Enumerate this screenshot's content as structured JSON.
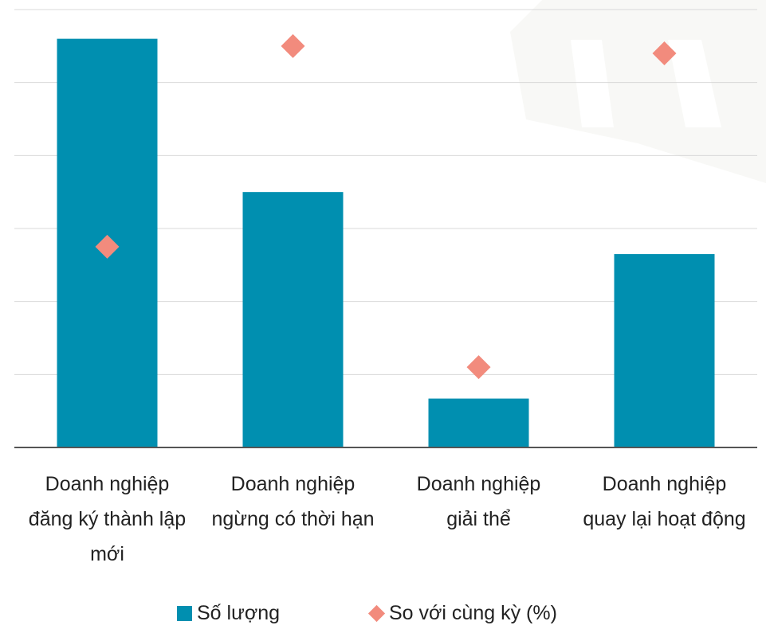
{
  "chart_data": {
    "type": "bar",
    "categories": [
      [
        "Doanh nghiệp",
        "đăng ký thành lập",
        "mới"
      ],
      [
        "Doanh nghiệp",
        "ngừng có thời hạn"
      ],
      [
        "Doanh nghiệp",
        "giải thể"
      ],
      [
        "Doanh nghiệp",
        "quay lại hoạt động"
      ]
    ],
    "series": [
      {
        "name": "Số lượng",
        "kind": "bar",
        "color": "#008fb0",
        "values": [
          5.6,
          3.5,
          0.67,
          2.65
        ]
      },
      {
        "name": "So với cùng kỳ (%)",
        "kind": "marker-diamond",
        "color": "#f28b7d",
        "values": [
          2.75,
          5.5,
          1.1,
          5.4
        ]
      }
    ],
    "ylim": [
      0,
      6
    ],
    "grid": true,
    "legend_position": "bottom",
    "xlabel": "",
    "ylabel": ""
  }
}
